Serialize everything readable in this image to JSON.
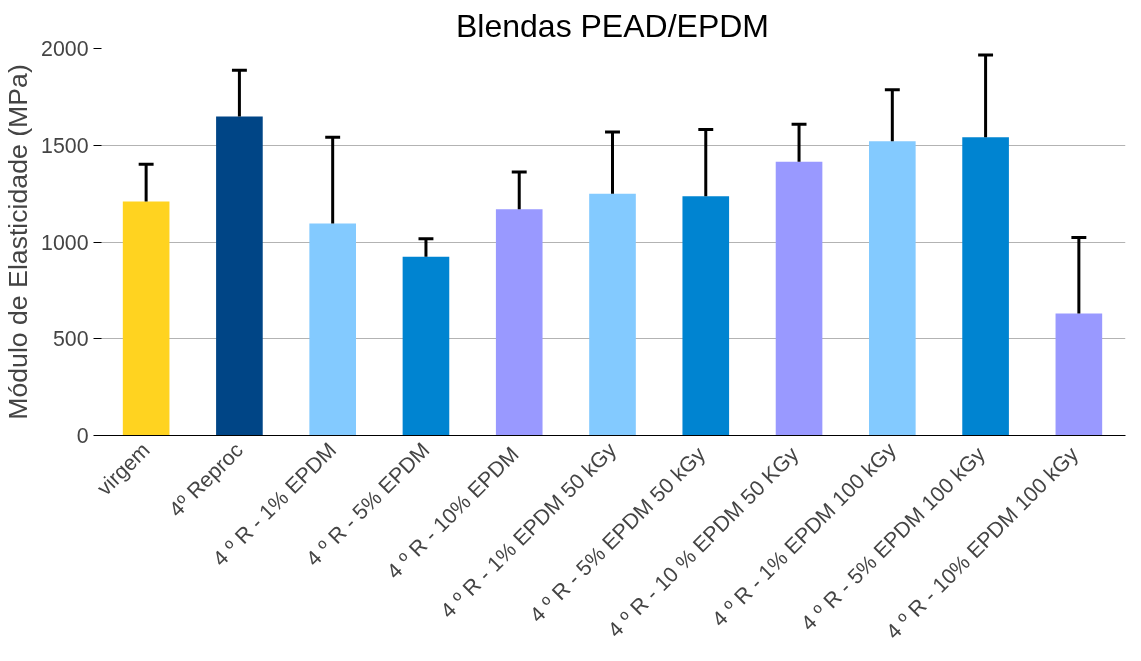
{
  "chart_data": {
    "type": "bar",
    "title": "Blendas PEAD/EPDM",
    "ylabel": "Módulo de Elasticidade (MPa)",
    "categories": [
      "virgem",
      "4º Reproc",
      "4 º R - 1% EPDM",
      "4 º R - 5% EPDM",
      "4 º R -  10% EPDM",
      "4 º R - 1% EPDM 50 kGy",
      "4 º R - 5% EPDM  50 kGy",
      "4 º R - 10 % EPDM  50 KGy",
      "4 º R - 1% EPDM 100 kGy",
      "4 º R - 5% EPDM  100 kGy",
      "4 º R - 10% EPDM  100 kGy"
    ],
    "values": [
      1209,
      1648,
      1096,
      924,
      1169,
      1249,
      1236,
      1415,
      1521,
      1541,
      631
    ],
    "errors": [
      [
        1209,
        1402
      ],
      [
        1648,
        1887
      ],
      [
        1096,
        1541
      ],
      [
        924,
        1017
      ],
      [
        1169,
        1362
      ],
      [
        1249,
        1568
      ],
      [
        1236,
        1581
      ],
      [
        1415,
        1608
      ],
      [
        1521,
        1787
      ],
      [
        1541,
        1967
      ],
      [
        631,
        1023
      ]
    ],
    "colors": [
      "#ffd320",
      "#004586",
      "#83caff",
      "#0084d1",
      "#9999ff",
      "#83caff",
      "#0084d1",
      "#9999ff",
      "#83caff",
      "#0084d1",
      "#9999ff"
    ],
    "ylim": [
      0,
      2000
    ],
    "yticks": [
      0,
      500,
      1000,
      1500,
      2000
    ],
    "grid": "y"
  }
}
